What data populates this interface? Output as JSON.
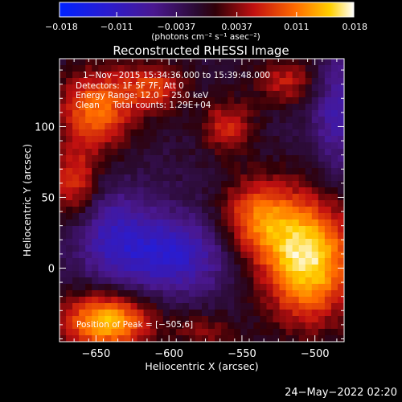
{
  "chart_data": {
    "type": "heatmap",
    "title": "Reconstructed RHESSI Image",
    "xlabel": "Heliocentric X (arcsec)",
    "ylabel": "Heliocentric Y (arcsec)",
    "xlim": [
      -675,
      -480
    ],
    "ylim": [
      -52,
      148
    ],
    "xticks": [
      -650,
      -600,
      -550,
      -500
    ],
    "yticks": [
      0,
      50,
      100
    ],
    "xtick_labels": [
      "−650",
      "−600",
      "−550",
      "−500"
    ],
    "ytick_labels": [
      "0",
      "50",
      "100"
    ],
    "colorbar": {
      "range": [
        -0.018,
        0.018
      ],
      "ticks": [
        -0.018,
        -0.011,
        -0.0037,
        0.0037,
        0.011,
        0.018
      ],
      "tick_labels": [
        "−0.018",
        "−0.011",
        "−0.0037",
        "0.0037",
        "0.011",
        "0.018"
      ],
      "unit_label": "(photons cm⁻² s⁻¹ asec⁻²)"
    },
    "annotations": [
      "1−Nov−2015 15:34:36.000 to 15:39:48.000",
      "Detectors: 1F 5F 7F, Att 0",
      "Energy Range: 12.0 − 25.0 keV",
      "Clean     Total counts: 1.29E+04"
    ],
    "peak_label": "Position of Peak = [−505,6]",
    "sources": [
      {
        "x": -505,
        "y": 6,
        "sx": 22,
        "sy": 30,
        "value": 0.018
      },
      {
        "x": -540,
        "y": 35,
        "sx": 18,
        "sy": 20,
        "value": 0.011
      },
      {
        "x": -643,
        "y": -38,
        "sx": 22,
        "sy": 14,
        "value": 0.016
      },
      {
        "x": -650,
        "y": 112,
        "sx": 18,
        "sy": 20,
        "value": 0.012
      },
      {
        "x": -610,
        "y": 128,
        "sx": 16,
        "sy": 12,
        "value": 0.009
      },
      {
        "x": -520,
        "y": 132,
        "sx": 16,
        "sy": 12,
        "value": 0.007
      },
      {
        "x": -665,
        "y": 60,
        "sx": 12,
        "sy": 18,
        "value": 0.009
      },
      {
        "x": -575,
        "y": -45,
        "sx": 15,
        "sy": 10,
        "value": 0.005
      },
      {
        "x": -560,
        "y": 100,
        "sx": 13,
        "sy": 13,
        "value": 0.008
      },
      {
        "x": -485,
        "y": 110,
        "sx": 12,
        "sy": 30,
        "value": -0.007
      },
      {
        "x": -600,
        "y": 10,
        "sx": 30,
        "sy": 20,
        "value": -0.01
      },
      {
        "x": -640,
        "y": 28,
        "sx": 18,
        "sy": 22,
        "value": -0.006
      }
    ],
    "background_value": -0.0015
  },
  "footer": {
    "date": "24−May−2022 02:20"
  }
}
